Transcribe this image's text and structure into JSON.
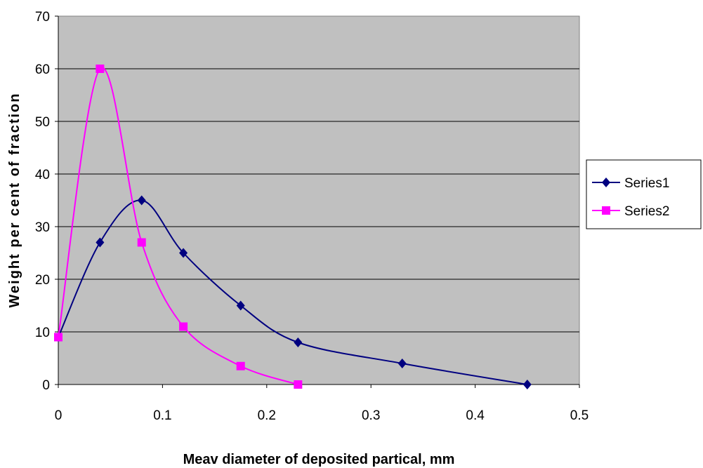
{
  "chart_data": {
    "type": "line",
    "title": "",
    "xlabel": "Meav diameter of deposited partical, mm",
    "ylabel": "Weight per cent of fraction",
    "xlim": [
      0,
      0.5
    ],
    "ylim": [
      0,
      70
    ],
    "x_ticks": [
      "0",
      "0.1",
      "0.2",
      "0.3",
      "0.4",
      "0.5"
    ],
    "y_ticks": [
      "0",
      "10",
      "20",
      "30",
      "40",
      "50",
      "60",
      "70"
    ],
    "grid": "horizontal",
    "smooth": true,
    "legend_position": "right",
    "plot_background": "#c0c0c0",
    "series": [
      {
        "name": "Series1",
        "color": "#000080",
        "marker": "diamond",
        "x": [
          0,
          0.04,
          0.08,
          0.12,
          0.175,
          0.23,
          0.33,
          0.45
        ],
        "y": [
          9,
          27,
          35,
          25,
          15,
          8,
          4,
          0
        ]
      },
      {
        "name": "Series2",
        "color": "#ff00ff",
        "marker": "square",
        "x": [
          0,
          0.04,
          0.08,
          0.12,
          0.175,
          0.23
        ],
        "y": [
          9,
          60,
          27,
          11,
          3.5,
          0
        ]
      }
    ]
  }
}
